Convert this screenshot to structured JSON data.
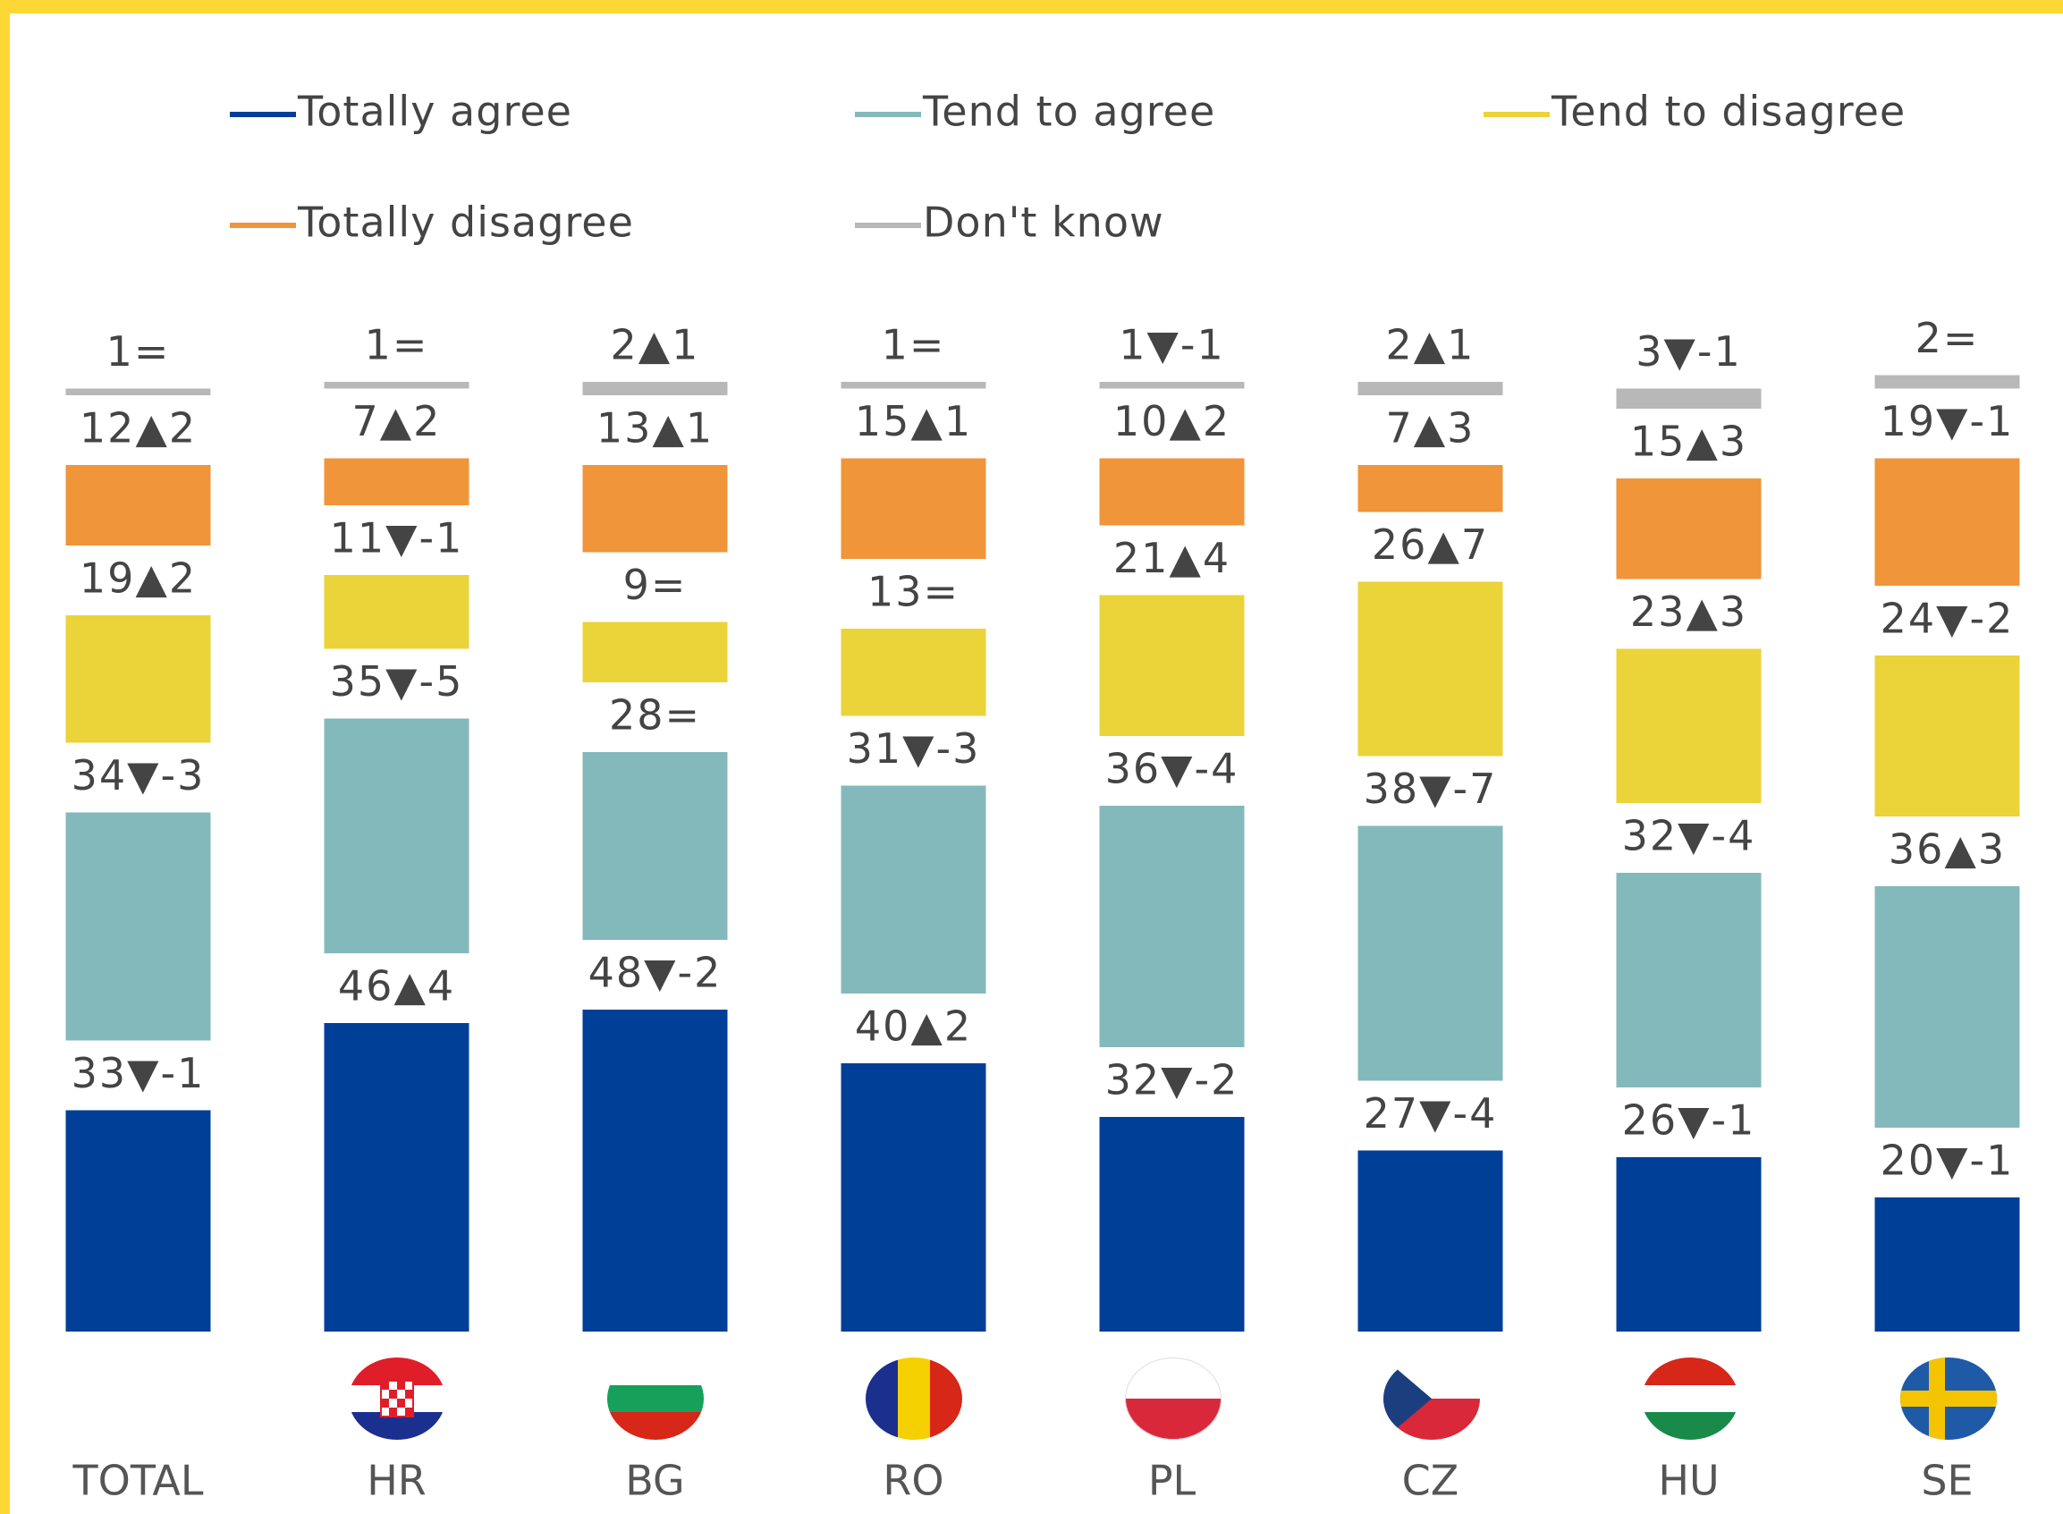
{
  "chart_data": {
    "type": "stacked_bar",
    "categories": [
      "TOTAL",
      "HR",
      "BG",
      "RO",
      "PL",
      "CZ",
      "HU",
      "SE"
    ],
    "series": [
      {
        "name": "Totally agree",
        "color": "#003f98",
        "values": [
          33,
          46,
          48,
          40,
          32,
          27,
          26,
          20
        ],
        "value_labels": [
          "33▼-1",
          "46▲4",
          "48▼-2",
          "40▲2",
          "32▼-2",
          "27▼-4",
          "26▼-1",
          "20▼-1"
        ]
      },
      {
        "name": "Tend to agree",
        "color": "#84b9bb",
        "values": [
          34,
          35,
          28,
          31,
          36,
          38,
          32,
          36
        ],
        "value_labels": [
          "34▼-3",
          "35▼-5",
          "28=",
          "31▼-3",
          "36▼-4",
          "38▼-7",
          "32▼-4",
          "36▲3"
        ]
      },
      {
        "name": "Tend to disagree",
        "color": "#ebd33a",
        "values": [
          19,
          11,
          9,
          13,
          21,
          26,
          23,
          24
        ],
        "value_labels": [
          "19▲2",
          "11▼-1",
          "9=",
          "13=",
          "21▲4",
          "26▲7",
          "23▲3",
          "24▼-2"
        ]
      },
      {
        "name": "Totally disagree",
        "color": "#f0953a",
        "values": [
          12,
          7,
          13,
          15,
          10,
          7,
          15,
          19
        ],
        "value_labels": [
          "12▲2",
          "7▲2",
          "13▲1",
          "15▲1",
          "10▲2",
          "7▲3",
          "15▲3",
          "19▼-1"
        ]
      },
      {
        "name": "Don't know",
        "color": "#b8b8b8",
        "values": [
          1,
          1,
          2,
          1,
          1,
          2,
          3,
          2
        ],
        "value_labels": [
          "1=",
          "1=",
          "2▲1",
          "1=",
          "1▼-1",
          "2▲1",
          "3▼-1",
          "2="
        ]
      }
    ]
  }
}
